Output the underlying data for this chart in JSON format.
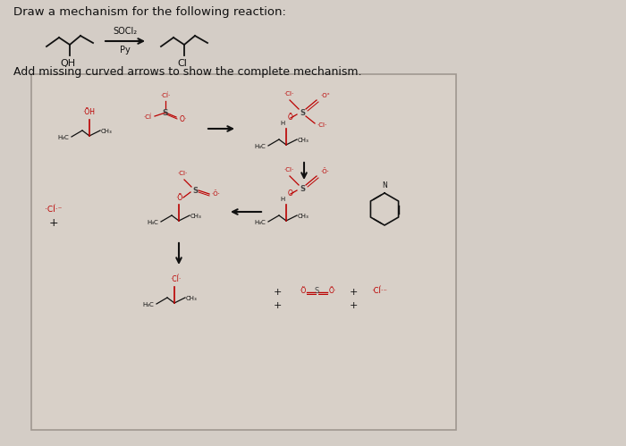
{
  "bg_color": "#d8d0c8",
  "panel_bg": "#ddd6cc",
  "panel_border": "#b0a898",
  "font_color": "#111111",
  "red_color": "#bb0000",
  "gray_color": "#444444",
  "title": "Draw a mechanism for the following reaction:",
  "subtitle": "Add missing curved arrows to show the complete mechanism.",
  "soci2_label": "SOCl₂",
  "py_label": "Py"
}
